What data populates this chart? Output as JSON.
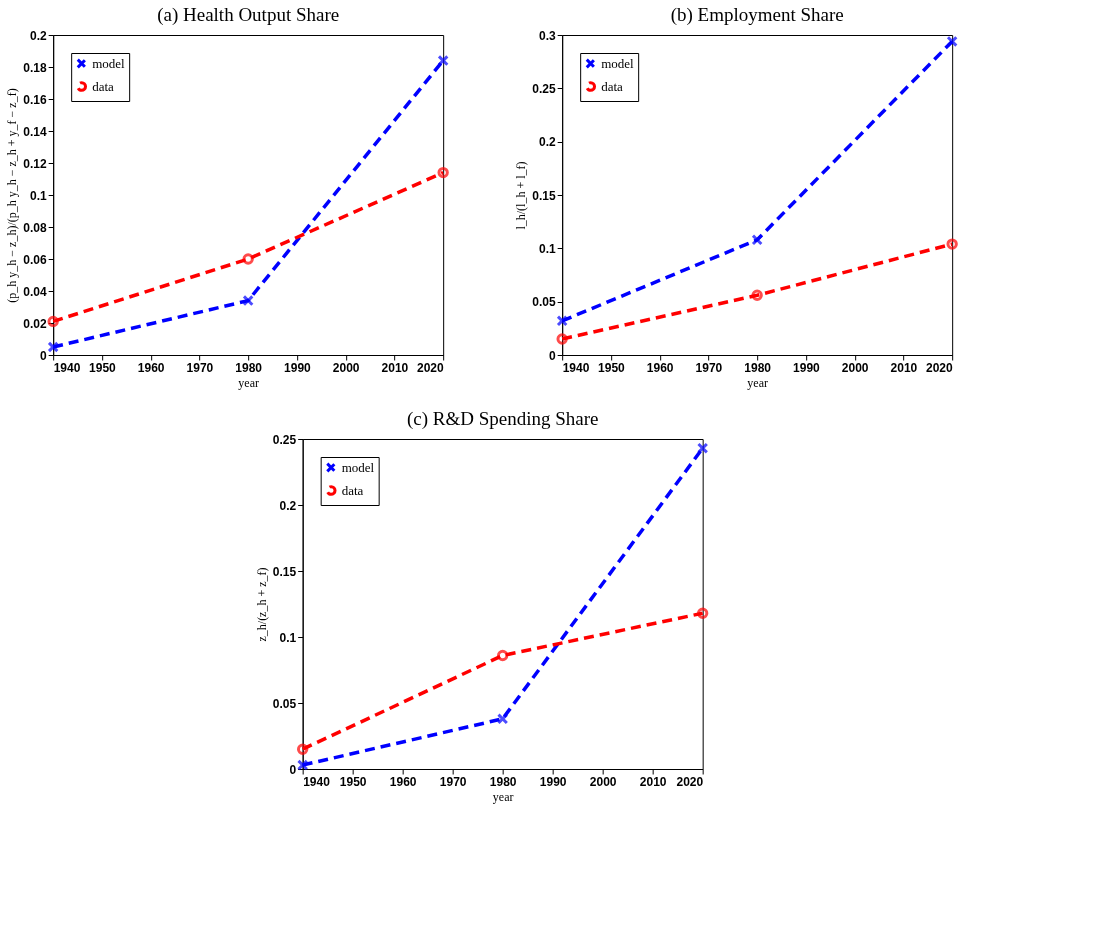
{
  "chart_data": [
    {
      "type": "line",
      "title": "(a) Health Output Share",
      "xlabel": "year",
      "ylabel": "(p_h y_h − z_h)/(p_h y_h − z_h + y_f − z_f)",
      "x": [
        1940,
        1980,
        2020
      ],
      "xlim": [
        1940,
        2020
      ],
      "xticks": [
        1940,
        1950,
        1960,
        1970,
        1980,
        1990,
        2000,
        2010,
        2020
      ],
      "ylim": [
        0,
        0.2
      ],
      "yticks": [
        0,
        0.02,
        0.04,
        0.06,
        0.08,
        0.1,
        0.12,
        0.14,
        0.16,
        0.18,
        0.2
      ],
      "grid": false,
      "legend": "top left",
      "line_style": "dashed",
      "series": [
        {
          "name": "model",
          "color": "#0000ff",
          "marker": "cross",
          "values": [
            0.005,
            0.034,
            0.184
          ]
        },
        {
          "name": "data",
          "color": "#ff0000",
          "marker": "circle",
          "values": [
            0.021,
            0.06,
            0.114
          ]
        }
      ]
    },
    {
      "type": "line",
      "title": "(b) Employment Share",
      "xlabel": "year",
      "ylabel": "l_h/(l_h + l_f)",
      "x": [
        1940,
        1980,
        2020
      ],
      "xlim": [
        1940,
        2020
      ],
      "xticks": [
        1940,
        1950,
        1960,
        1970,
        1980,
        1990,
        2000,
        2010,
        2020
      ],
      "ylim": [
        0,
        0.3
      ],
      "yticks": [
        0,
        0.05,
        0.1,
        0.15,
        0.2,
        0.25,
        0.3
      ],
      "grid": false,
      "legend": "top left",
      "line_style": "dashed",
      "series": [
        {
          "name": "model",
          "color": "#0000ff",
          "marker": "cross",
          "values": [
            0.032,
            0.108,
            0.294
          ]
        },
        {
          "name": "data",
          "color": "#ff0000",
          "marker": "circle",
          "values": [
            0.015,
            0.056,
            0.104
          ]
        }
      ]
    },
    {
      "type": "line",
      "title": "(c) R&D Spending Share",
      "xlabel": "year",
      "ylabel": "z_h/(z_h + z_f)",
      "x": [
        1940,
        1980,
        2020
      ],
      "xlim": [
        1940,
        2020
      ],
      "xticks": [
        1940,
        1950,
        1960,
        1970,
        1980,
        1990,
        2000,
        2010,
        2020
      ],
      "ylim": [
        0,
        0.25
      ],
      "yticks": [
        0,
        0.05,
        0.1,
        0.15,
        0.2,
        0.25
      ],
      "grid": false,
      "legend": "top left",
      "line_style": "dashed",
      "series": [
        {
          "name": "model",
          "color": "#0000ff",
          "marker": "cross",
          "values": [
            0.003,
            0.038,
            0.243
          ]
        },
        {
          "name": "data",
          "color": "#ff0000",
          "marker": "circle",
          "values": [
            0.015,
            0.086,
            0.118
          ]
        }
      ]
    }
  ]
}
